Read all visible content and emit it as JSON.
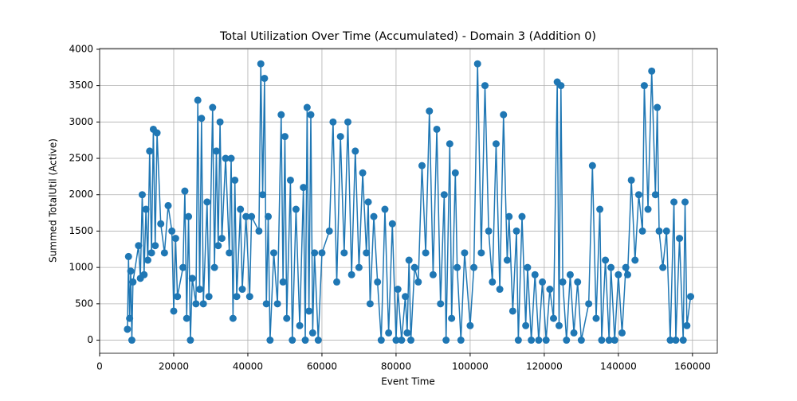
{
  "chart_data": {
    "type": "line",
    "title": "Total Utilization Over Time (Accumulated) - Domain 3 (Addition 0)",
    "xlabel": "Event Time",
    "ylabel": "Summed TotalUtil (Active)",
    "xlim": [
      0,
      166700
    ],
    "ylim": [
      -180,
      4010
    ],
    "xticks": [
      0,
      20000,
      40000,
      60000,
      80000,
      100000,
      120000,
      140000,
      160000
    ],
    "yticks": [
      0,
      500,
      1000,
      1500,
      2000,
      2500,
      3000,
      3500,
      4000
    ],
    "grid": true,
    "series": [
      {
        "color": "#1f77b4",
        "x": [
          7500,
          7800,
          8100,
          8400,
          8700,
          9000,
          10500,
          11000,
          11500,
          12000,
          12500,
          13000,
          13500,
          14000,
          14500,
          15000,
          15500,
          16500,
          17500,
          18500,
          19500,
          20000,
          20500,
          21000,
          22500,
          23000,
          23500,
          24000,
          24500,
          25000,
          26000,
          26500,
          27000,
          27500,
          28000,
          29000,
          29500,
          30500,
          31000,
          31500,
          32000,
          32500,
          33000,
          34000,
          35000,
          35500,
          36000,
          36500,
          37000,
          38000,
          38500,
          39500,
          40500,
          41000,
          43000,
          43500,
          44000,
          44500,
          45000,
          45500,
          46000,
          47000,
          48000,
          49000,
          49500,
          50000,
          50500,
          51500,
          52000,
          53000,
          54000,
          55000,
          55500,
          56000,
          56500,
          57000,
          57500,
          58000,
          59000,
          60000,
          62000,
          63000,
          64000,
          65000,
          66000,
          67000,
          68000,
          69000,
          70000,
          71000,
          72000,
          72500,
          73000,
          74000,
          75000,
          76000,
          77000,
          78000,
          79000,
          80000,
          80500,
          81500,
          82500,
          83000,
          83500,
          84000,
          85000,
          86000,
          87000,
          88000,
          89000,
          90000,
          91000,
          92000,
          93000,
          93500,
          94500,
          95000,
          96000,
          96500,
          97500,
          98500,
          100000,
          101000,
          102000,
          103000,
          104000,
          105000,
          106000,
          107000,
          108000,
          109000,
          110000,
          110500,
          111500,
          112500,
          113000,
          114000,
          115000,
          115500,
          116500,
          117500,
          118500,
          119500,
          120500,
          121500,
          122500,
          123500,
          124000,
          124500,
          125000,
          126000,
          127000,
          128000,
          129000,
          130000,
          132000,
          133000,
          134000,
          135000,
          135500,
          136500,
          137500,
          138000,
          139000,
          140000,
          141000,
          142000,
          142500,
          143500,
          144500,
          145500,
          146500,
          147000,
          148000,
          149000,
          150000,
          150500,
          151000,
          152000,
          153000,
          154000,
          155000,
          155500,
          156500,
          157500,
          158000,
          158500,
          159500
        ],
        "values": [
          150,
          1150,
          300,
          950,
          0,
          800,
          1300,
          850,
          2000,
          900,
          1800,
          1100,
          2600,
          1200,
          2900,
          1300,
          2850,
          1600,
          1200,
          1850,
          1500,
          400,
          1400,
          600,
          1000,
          2050,
          300,
          1700,
          0,
          850,
          500,
          3300,
          700,
          3050,
          500,
          1900,
          600,
          3200,
          1000,
          2600,
          1300,
          3000,
          1400,
          2500,
          1200,
          2500,
          300,
          2200,
          600,
          1800,
          700,
          1700,
          600,
          1700,
          1500,
          3800,
          2000,
          3600,
          500,
          1700,
          0,
          1200,
          500,
          3100,
          800,
          2800,
          300,
          2200,
          0,
          1800,
          200,
          2100,
          0,
          3200,
          400,
          3100,
          100,
          1200,
          0,
          1200,
          1500,
          3000,
          800,
          2800,
          1200,
          3000,
          900,
          2600,
          1000,
          2300,
          1200,
          1900,
          500,
          1700,
          800,
          0,
          1800,
          100,
          1600,
          0,
          700,
          0,
          600,
          100,
          1100,
          0,
          1000,
          800,
          2400,
          1200,
          3150,
          900,
          2900,
          500,
          2000,
          0,
          2700,
          300,
          2300,
          1000,
          0,
          1200,
          200,
          1000,
          3800,
          1200,
          3500,
          1500,
          800,
          2700,
          700,
          3100,
          1100,
          1700,
          400,
          1500,
          0,
          1700,
          200,
          1000,
          0,
          900,
          0,
          800,
          0,
          700,
          300,
          3550,
          200,
          3500,
          800,
          0,
          900,
          100,
          800,
          0,
          500,
          2400,
          300,
          1800,
          0,
          1100,
          0,
          1000,
          0,
          900,
          100,
          1000,
          900,
          2200,
          1100,
          2000,
          1500,
          3500,
          1800,
          3700,
          2000,
          3200,
          1500,
          1000,
          1500,
          0,
          1900,
          0,
          1400,
          0,
          1900,
          200,
          600
        ]
      }
    ]
  }
}
